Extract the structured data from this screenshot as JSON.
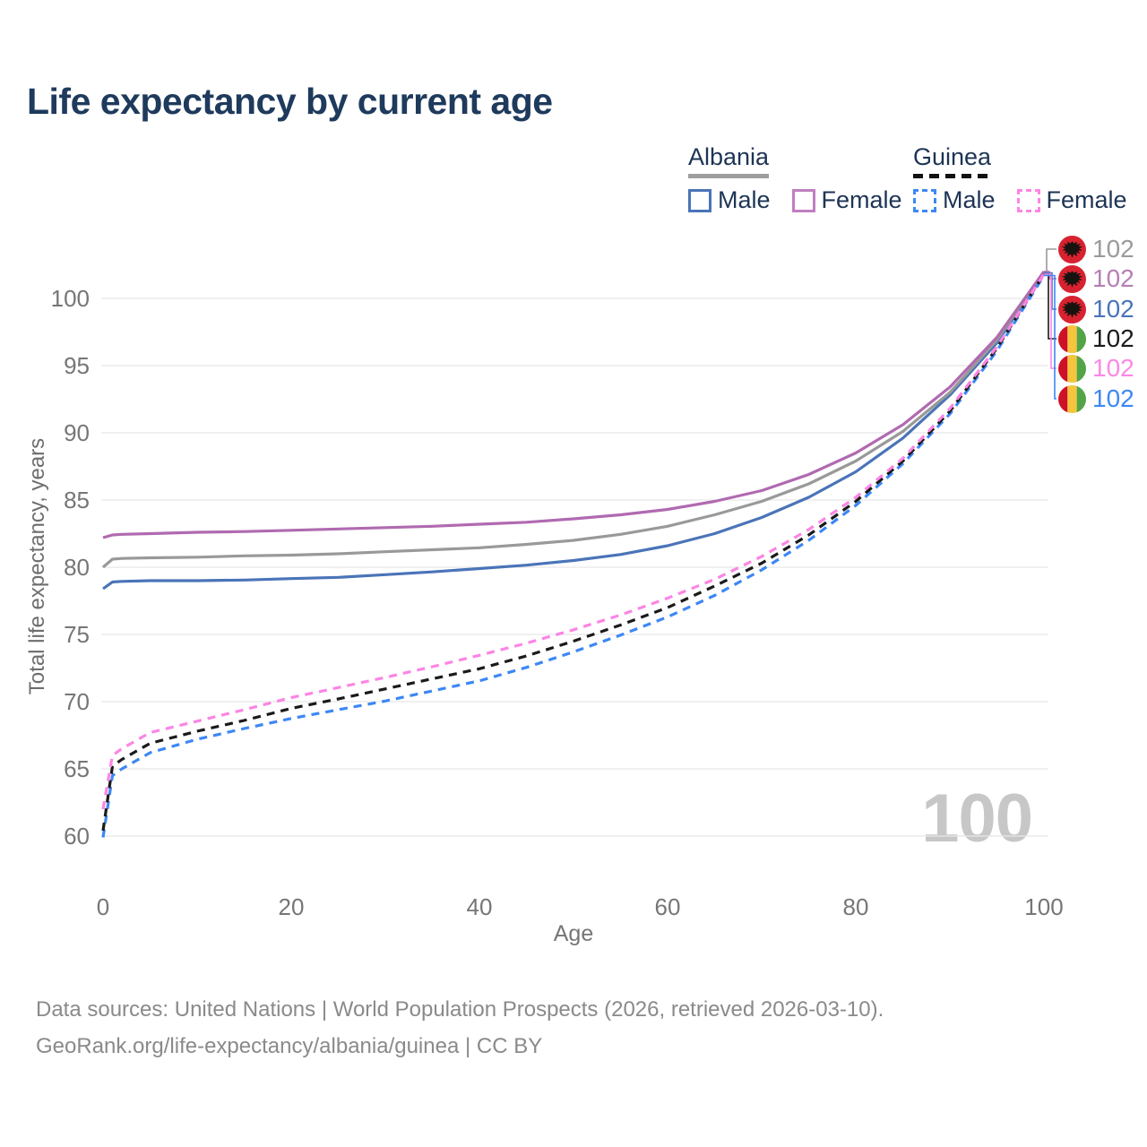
{
  "title": "Life expectancy by current age",
  "watermark": "100",
  "colors": {
    "title": "#1e3a5c",
    "legend_text": "#1d3455",
    "tick": "#767676",
    "gridline": "#e8e8e8",
    "watermark": "#c7c7c7",
    "footer": "#8a8a8a",
    "albania_male": "#4a74b8",
    "albania_female": "#b06ab0",
    "albania_total": "#999999",
    "guinea_male": "#3d87f5",
    "guinea_female": "#fc85e4",
    "guinea_total": "#1a1a1a",
    "albania_flag_red": "#d8222f",
    "guinea_flag_red": "#ce1126",
    "guinea_flag_yellow": "#f4c53d",
    "guinea_flag_green": "#52a447"
  },
  "legend": {
    "groups": [
      {
        "country": "Albania",
        "underline_style": "solid",
        "underline_color": "#9e9e9e",
        "items": [
          {
            "label": "Male",
            "color": "#4a74b8",
            "dash": false
          },
          {
            "label": "Female",
            "color": "#c07fc0",
            "dash": false
          }
        ]
      },
      {
        "country": "Guinea",
        "underline_style": "dashed",
        "underline_color": "#111111",
        "items": [
          {
            "label": "Male",
            "color": "#3d87f5",
            "dash": true
          },
          {
            "label": "Female",
            "color": "#fc85e4",
            "dash": true
          }
        ]
      }
    ]
  },
  "axes": {
    "x": {
      "label": "Age",
      "ticks": [
        0,
        20,
        40,
        60,
        80,
        100
      ],
      "range": [
        0,
        100
      ]
    },
    "y": {
      "label": "Total life expectancy, years",
      "ticks": [
        60,
        65,
        70,
        75,
        80,
        85,
        90,
        95,
        100
      ],
      "range": [
        58,
        103
      ]
    }
  },
  "chart_data": {
    "type": "line",
    "title": "Life expectancy by current age",
    "xlabel": "Age",
    "ylabel": "Total life expectancy, years",
    "xlim": [
      0,
      100
    ],
    "ylim": [
      58,
      103
    ],
    "grid": "horizontal",
    "legend_position": "top-right",
    "x": [
      0,
      1,
      2,
      5,
      10,
      15,
      20,
      25,
      30,
      35,
      40,
      45,
      50,
      55,
      60,
      65,
      70,
      75,
      80,
      85,
      90,
      95,
      100
    ],
    "series": [
      {
        "name": "Albania Male",
        "country": "Albania",
        "sex": "Male",
        "color": "#4a74b8",
        "dash": "solid",
        "end_label": "102",
        "values": [
          78.4,
          78.9,
          78.95,
          79.0,
          79.0,
          79.05,
          79.15,
          79.25,
          79.45,
          79.65,
          79.9,
          80.15,
          80.5,
          80.95,
          81.6,
          82.5,
          83.7,
          85.2,
          87.1,
          89.6,
          92.8,
          96.7,
          101.9
        ]
      },
      {
        "name": "Albania Both sexes",
        "country": "Albania",
        "sex": "Both",
        "color": "#999999",
        "dash": "solid",
        "end_label": "102",
        "values": [
          80.0,
          80.6,
          80.65,
          80.7,
          80.75,
          80.85,
          80.9,
          81.0,
          81.15,
          81.3,
          81.45,
          81.7,
          82.0,
          82.45,
          83.05,
          83.9,
          84.9,
          86.2,
          87.9,
          90.1,
          93.0,
          96.9,
          102.0
        ]
      },
      {
        "name": "Albania Female",
        "country": "Albania",
        "sex": "Female",
        "color": "#b06ab0",
        "dash": "solid",
        "end_label": "102",
        "values": [
          82.2,
          82.4,
          82.45,
          82.5,
          82.6,
          82.65,
          82.75,
          82.85,
          82.95,
          83.05,
          83.2,
          83.35,
          83.6,
          83.9,
          84.3,
          84.9,
          85.7,
          86.9,
          88.5,
          90.6,
          93.4,
          97.1,
          102.0
        ]
      },
      {
        "name": "Guinea Male",
        "country": "Guinea",
        "sex": "Male",
        "color": "#3d87f5",
        "dash": "dashed",
        "end_label": "102",
        "values": [
          59.9,
          64.5,
          65.0,
          66.2,
          67.2,
          68.0,
          68.75,
          69.4,
          70.05,
          70.8,
          71.55,
          72.55,
          73.7,
          74.95,
          76.3,
          77.9,
          79.8,
          82.0,
          84.6,
          87.7,
          91.4,
          96.1,
          101.7
        ]
      },
      {
        "name": "Guinea Both sexes",
        "country": "Guinea",
        "sex": "Both",
        "color": "#1a1a1a",
        "dash": "dashed",
        "end_label": "102",
        "values": [
          60.4,
          65.2,
          65.7,
          66.9,
          67.8,
          68.6,
          69.5,
          70.2,
          70.95,
          71.7,
          72.45,
          73.4,
          74.5,
          75.7,
          77.0,
          78.6,
          80.3,
          82.4,
          84.9,
          87.9,
          91.6,
          96.3,
          101.8
        ]
      },
      {
        "name": "Guinea Female",
        "country": "Guinea",
        "sex": "Female",
        "color": "#fc85e4",
        "dash": "dashed",
        "end_label": "102",
        "values": [
          62.0,
          66.0,
          66.5,
          67.7,
          68.55,
          69.4,
          70.3,
          71.05,
          71.8,
          72.6,
          73.45,
          74.35,
          75.35,
          76.45,
          77.7,
          79.1,
          80.8,
          82.8,
          85.2,
          88.1,
          91.8,
          96.4,
          101.8
        ]
      }
    ]
  },
  "annotations": [
    {
      "flag": "albania",
      "series_index": 1,
      "value": "102",
      "color": "#9a9a9a"
    },
    {
      "flag": "albania",
      "series_index": 2,
      "value": "102",
      "color": "#b57fb5"
    },
    {
      "flag": "albania",
      "series_index": 0,
      "value": "102",
      "color": "#4a74ba"
    },
    {
      "flag": "guinea",
      "series_index": 4,
      "value": "102",
      "color": "#1a1a1a"
    },
    {
      "flag": "guinea",
      "series_index": 5,
      "value": "102",
      "color": "#fb87e6"
    },
    {
      "flag": "guinea",
      "series_index": 3,
      "value": "102",
      "color": "#3d87f5"
    }
  ],
  "footer": {
    "line1": "Data sources: United Nations | World Population Prospects (2026, retrieved 2026-03-10).",
    "line2": "GeoRank.org/life-expectancy/albania/guinea | CC BY"
  }
}
